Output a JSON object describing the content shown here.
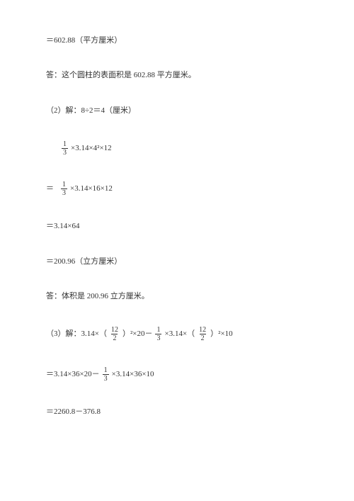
{
  "lines": {
    "l1_a": "＝602.88（平方厘米）",
    "l2_a": "答：这个圆柱的表面积是 602.88 平方厘米。",
    "l3_a": "（2）解：8÷2＝4（厘米）",
    "l4_a": " ×3.14×4²×12",
    "l5_a": "＝ ",
    "l5_b": " ×3.14×16×12",
    "l6_a": "＝3.14×64",
    "l7_a": "＝200.96（立方厘米）",
    "l8_a": "答：体积是 200.96 立方厘米。",
    "l9_a": "（3）解：3.14×（ ",
    "l9_b": " ）²×20－ ",
    "l9_c": " ×3.14×（ ",
    "l9_d": " ）²×10",
    "l10_a": "＝3.14×36×20－ ",
    "l10_b": " ×3.14×36×10",
    "l11_a": "＝2260.8－376.8"
  },
  "frac": {
    "one": "1",
    "three": "3",
    "twelve": "12",
    "two": "2"
  },
  "colors": {
    "text": "#333333",
    "background": "#ffffff"
  },
  "typography": {
    "font_family": "SimSun",
    "font_size": 11
  }
}
